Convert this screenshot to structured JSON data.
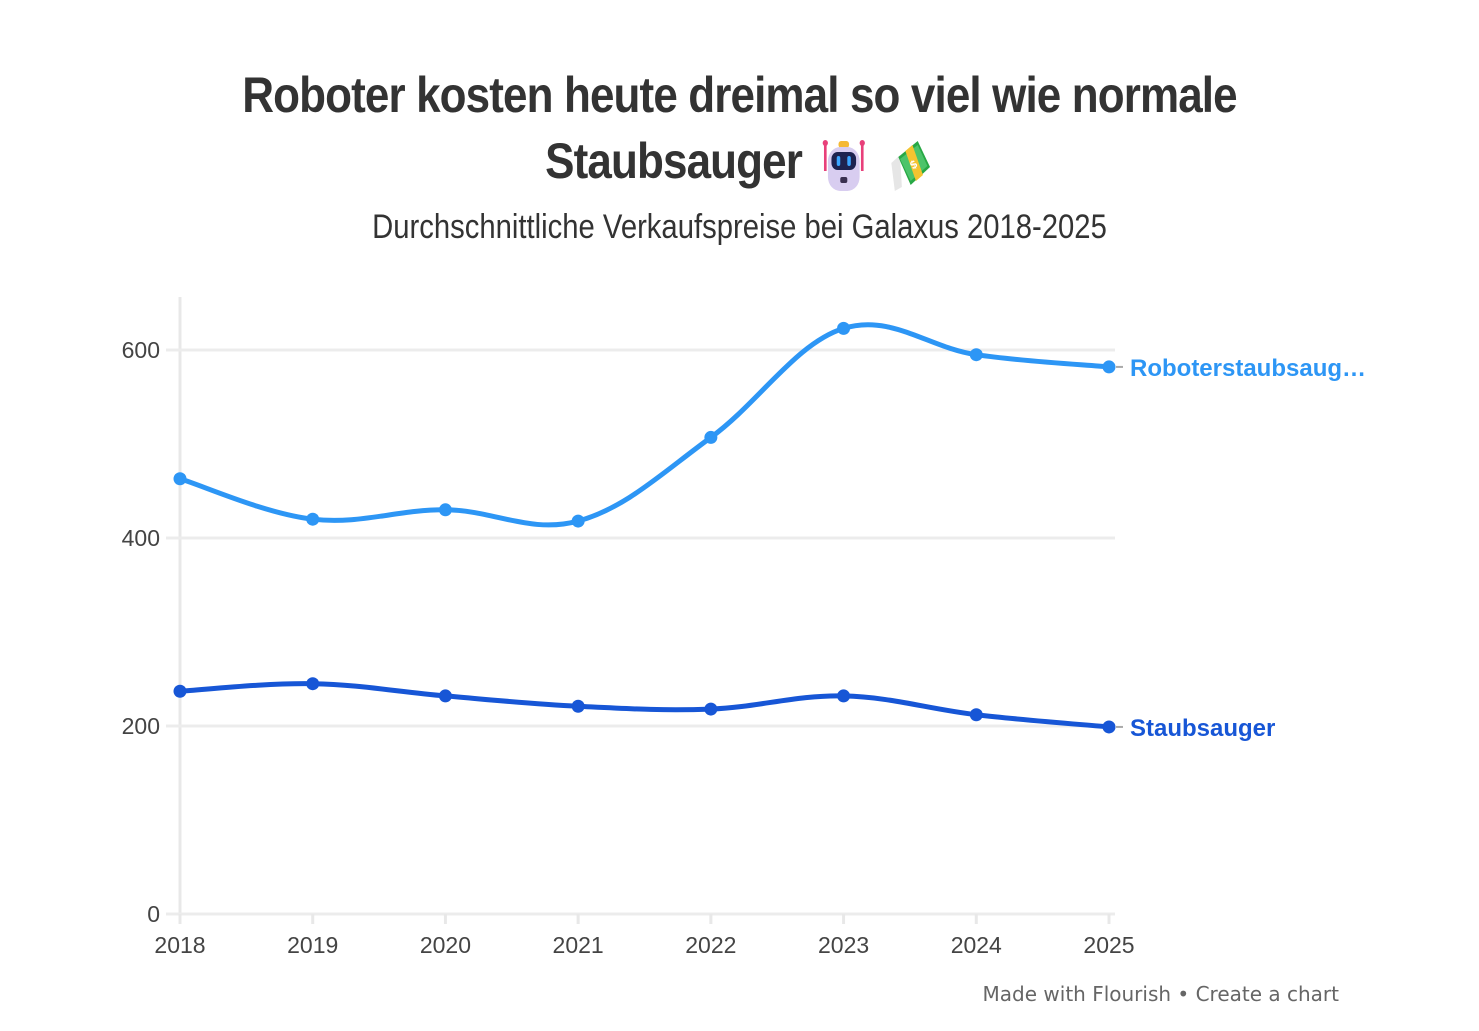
{
  "header": {
    "title_line1": "Roboter kosten heute dreimal so viel wie normale",
    "title_line2": "Staubsauger",
    "title_icons": [
      "robot-emoji",
      "money-with-wings-emoji"
    ],
    "subtitle": "Durchschnittliche Verkaufspreise bei Galaxus 2018-2025"
  },
  "footer": {
    "made_with": "Made with Flourish",
    "separator": "•",
    "create": "Create a chart"
  },
  "chart_data": {
    "type": "line",
    "title": "Roboter kosten heute dreimal so viel wie normale Staubsauger",
    "subtitle": "Durchschnittliche Verkaufspreise bei Galaxus 2018-2025",
    "xlabel": "",
    "ylabel": "",
    "x": [
      "2018",
      "2019",
      "2020",
      "2021",
      "2022",
      "2023",
      "2024",
      "2025"
    ],
    "ylim": [
      0,
      660
    ],
    "yticks": [
      0,
      200,
      400,
      600
    ],
    "grid": true,
    "legend": "inline-end-labels",
    "series": [
      {
        "name": "Roboterstaubsauger",
        "label": "Roboterstaubsaug…",
        "color": "#2d96f5",
        "values": [
          463,
          420,
          430,
          418,
          507,
          623,
          595,
          582
        ]
      },
      {
        "name": "Staubsauger",
        "label": "Staubsauger",
        "color": "#1756d6",
        "values": [
          237,
          245,
          232,
          221,
          218,
          232,
          212,
          199
        ]
      }
    ]
  }
}
